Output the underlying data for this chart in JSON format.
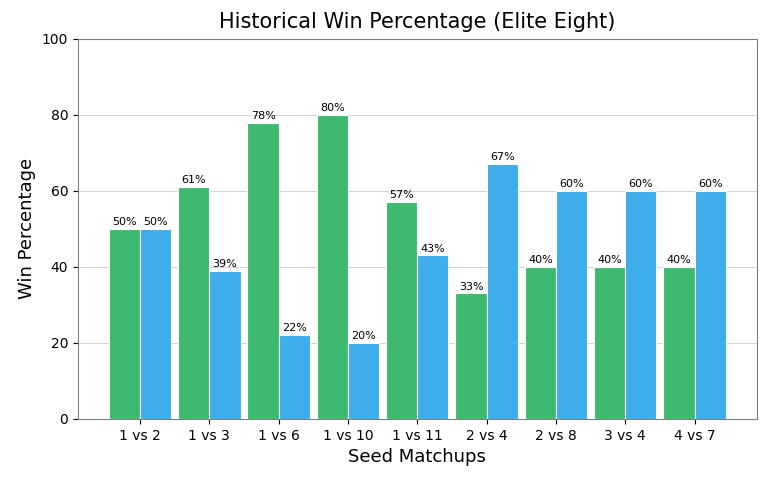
{
  "title": "Historical Win Percentage (Elite Eight)",
  "xlabel": "Seed Matchups",
  "ylabel": "Win Percentage",
  "matchups": [
    "1 vs 2",
    "1 vs 3",
    "1 vs 6",
    "1 vs 10",
    "1 vs 11",
    "2 vs 4",
    "2 vs 8",
    "3 vs 4",
    "4 vs 7"
  ],
  "lower_seed_pct": [
    50,
    61,
    78,
    80,
    57,
    33,
    40,
    40,
    40
  ],
  "higher_seed_pct": [
    50,
    39,
    22,
    20,
    43,
    67,
    60,
    60,
    60
  ],
  "lower_seed_color": "#3dba6f",
  "higher_seed_color": "#3daee9",
  "bar_width": 0.45,
  "ylim": [
    0,
    100
  ],
  "yticks": [
    0,
    20,
    40,
    60,
    80,
    100
  ],
  "label_fontsize": 8,
  "title_fontsize": 15,
  "axis_label_fontsize": 13,
  "tick_label_fontsize": 10,
  "background_color": "#ffffff",
  "grid": true,
  "figsize": [
    7.8,
    4.87
  ],
  "dpi": 100
}
